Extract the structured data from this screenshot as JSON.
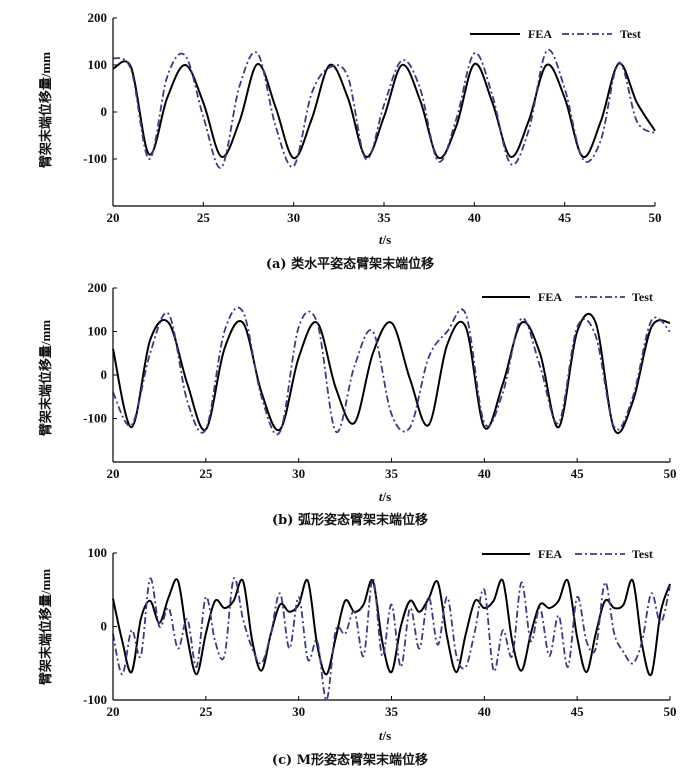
{
  "chart_data": [
    {
      "type": "line",
      "caption": "(a) 类水平姿态臂架末端位移",
      "xlabel": "t/s",
      "ylabel": "臂架末端位移量/mm",
      "xlim": [
        20,
        50
      ],
      "ylim": [
        -200,
        200
      ],
      "xticks": [
        20,
        25,
        30,
        35,
        40,
        45,
        50
      ],
      "yticks": [
        200,
        100,
        0,
        -100
      ],
      "legend_position": "top-right",
      "series": [
        {
          "name": "FEA",
          "color": "#000000",
          "style": "solid",
          "x": [
            20.0,
            21.0,
            22.0,
            23.0,
            24.0,
            25.0,
            26.0,
            27.0,
            28.0,
            29.0,
            30.0,
            31.0,
            32.0,
            33.0,
            34.0,
            35.0,
            36.0,
            37.0,
            38.0,
            39.0,
            40.0,
            41.0,
            42.0,
            43.0,
            44.0,
            45.0,
            46.0,
            47.0,
            48.0,
            49.0,
            50.0
          ],
          "y": [
            92,
            95,
            -90,
            30,
            100,
            20,
            -95,
            -20,
            102,
            10,
            -98,
            -15,
            100,
            30,
            -95,
            -10,
            100,
            25,
            -97,
            -30,
            102,
            20,
            -95,
            -20,
            100,
            30,
            -95,
            -20,
            103,
            20,
            -40
          ]
        },
        {
          "name": "Test",
          "color": "#3a3a8c",
          "style": "dashdot",
          "x": [
            20.0,
            21.0,
            22.0,
            23.0,
            24.0,
            25.0,
            26.0,
            27.0,
            28.0,
            29.0,
            30.0,
            31.0,
            32.0,
            33.0,
            34.0,
            35.0,
            36.0,
            37.0,
            38.0,
            39.0,
            40.0,
            41.0,
            42.0,
            43.0,
            44.0,
            45.0,
            46.0,
            47.0,
            48.0,
            49.0,
            50.0
          ],
          "y": [
            115,
            90,
            -100,
            75,
            120,
            -10,
            -118,
            55,
            125,
            -30,
            -115,
            40,
            95,
            75,
            -100,
            15,
            110,
            50,
            -105,
            -15,
            125,
            35,
            -110,
            -40,
            130,
            50,
            -100,
            -60,
            105,
            -20,
            -45
          ]
        }
      ]
    },
    {
      "type": "line",
      "caption": "(b) 弧形姿态臂架末端位移",
      "xlabel": "t/s",
      "ylabel": "臂架末端位移量/mm",
      "xlim": [
        20,
        50
      ],
      "ylim": [
        -200,
        200
      ],
      "xticks": [
        20,
        25,
        30,
        35,
        40,
        45,
        50
      ],
      "yticks": [
        200,
        100,
        0,
        -100
      ],
      "legend_position": "top-right",
      "series": [
        {
          "name": "FEA",
          "color": "#000000",
          "style": "solid",
          "x": [
            20.0,
            21.0,
            22.0,
            23.0,
            24.0,
            25.0,
            26.0,
            27.0,
            28.0,
            29.0,
            30.0,
            31.0,
            32.0,
            33.0,
            34.0,
            35.0,
            36.0,
            37.0,
            38.0,
            39.0,
            40.0,
            41.0,
            42.0,
            43.0,
            44.0,
            45.0,
            46.0,
            47.0,
            48.0,
            49.0,
            50.0
          ],
          "y": [
            60,
            -120,
            80,
            120,
            -20,
            -125,
            60,
            120,
            -40,
            -125,
            40,
            120,
            -30,
            -110,
            50,
            120,
            -10,
            -115,
            70,
            110,
            -120,
            -20,
            120,
            50,
            -120,
            100,
            120,
            -125,
            -60,
            110,
            120
          ]
        },
        {
          "name": "Test",
          "color": "#3a3a8c",
          "style": "dashdot",
          "x": [
            20.0,
            21.0,
            22.0,
            23.0,
            24.0,
            25.0,
            26.0,
            27.0,
            28.0,
            29.0,
            30.0,
            31.0,
            32.0,
            33.0,
            34.0,
            35.0,
            36.0,
            37.0,
            38.0,
            39.0,
            40.0,
            41.0,
            42.0,
            43.0,
            44.0,
            45.0,
            46.0,
            47.0,
            48.0,
            49.0,
            50.0
          ],
          "y": [
            -40,
            -115,
            50,
            140,
            -60,
            -125,
            100,
            145,
            -50,
            -130,
            110,
            120,
            -130,
            20,
            100,
            -90,
            -120,
            40,
            100,
            140,
            -110,
            -40,
            130,
            20,
            -110,
            110,
            90,
            -120,
            -50,
            125,
            100
          ]
        }
      ]
    },
    {
      "type": "line",
      "caption": "(c) M形姿态臂架末端位移",
      "xlabel": "t/s",
      "ylabel": "臂架末端位移量/mm",
      "xlim": [
        20,
        50
      ],
      "ylim": [
        -100,
        100
      ],
      "xticks": [
        20,
        25,
        30,
        35,
        40,
        45,
        50
      ],
      "yticks": [
        100,
        0,
        -100
      ],
      "legend_position": "top-right",
      "series": [
        {
          "name": "FEA",
          "color": "#000000",
          "style": "solid",
          "x": [
            20.0,
            20.5,
            21.0,
            21.5,
            22.0,
            22.5,
            23.0,
            23.5,
            24.0,
            24.5,
            25.0,
            25.5,
            26.0,
            26.5,
            27.0,
            27.5,
            28.0,
            28.5,
            29.0,
            29.5,
            30.0,
            30.5,
            31.0,
            31.5,
            32.0,
            32.5,
            33.0,
            33.5,
            34.0,
            34.5,
            35.0,
            35.5,
            36.0,
            36.5,
            37.0,
            37.5,
            38.0,
            38.5,
            39.0,
            39.5,
            40.0,
            40.5,
            41.0,
            41.5,
            42.0,
            42.5,
            43.0,
            43.5,
            44.0,
            44.5,
            45.0,
            45.5,
            46.0,
            46.5,
            47.0,
            47.5,
            48.0,
            48.5,
            49.0,
            49.5,
            50.0
          ],
          "y": [
            38,
            -20,
            -62,
            10,
            35,
            5,
            40,
            62,
            -15,
            -65,
            -10,
            35,
            25,
            35,
            62,
            -20,
            -60,
            -10,
            30,
            20,
            30,
            62,
            -25,
            -65,
            -15,
            35,
            20,
            30,
            62,
            -20,
            -62,
            0,
            35,
            20,
            38,
            60,
            -15,
            -62,
            -10,
            35,
            25,
            35,
            62,
            -20,
            -60,
            -10,
            30,
            25,
            35,
            62,
            -15,
            -62,
            -10,
            35,
            25,
            30,
            62,
            -25,
            -65,
            20,
            58
          ]
        },
        {
          "name": "Test",
          "color": "#3a3a8c",
          "style": "dashdot",
          "x": [
            20.0,
            20.5,
            21.0,
            21.5,
            22.0,
            22.5,
            23.0,
            23.5,
            24.0,
            24.5,
            25.0,
            25.5,
            26.0,
            26.5,
            27.0,
            27.5,
            28.0,
            28.5,
            29.0,
            29.5,
            30.0,
            30.5,
            31.0,
            31.5,
            32.0,
            32.5,
            33.0,
            33.5,
            34.0,
            34.5,
            35.0,
            35.5,
            36.0,
            36.5,
            37.0,
            37.5,
            38.0,
            38.5,
            39.0,
            39.5,
            40.0,
            40.5,
            41.0,
            41.5,
            42.0,
            42.5,
            43.0,
            43.5,
            44.0,
            44.5,
            45.0,
            45.5,
            46.0,
            46.5,
            47.0,
            47.5,
            48.0,
            48.5,
            49.0,
            49.5,
            50.0
          ],
          "y": [
            -10,
            -65,
            -5,
            -40,
            65,
            0,
            25,
            -30,
            10,
            -55,
            40,
            -20,
            -40,
            65,
            10,
            -30,
            -50,
            -10,
            45,
            -30,
            40,
            -45,
            -20,
            -100,
            -5,
            -10,
            20,
            -40,
            65,
            -40,
            30,
            -55,
            25,
            -30,
            40,
            -25,
            40,
            -40,
            -55,
            -5,
            50,
            -60,
            -5,
            -40,
            60,
            -20,
            25,
            -40,
            15,
            -55,
            40,
            -20,
            -30,
            60,
            -10,
            -35,
            -50,
            -20,
            45,
            5,
            55
          ]
        }
      ]
    }
  ]
}
